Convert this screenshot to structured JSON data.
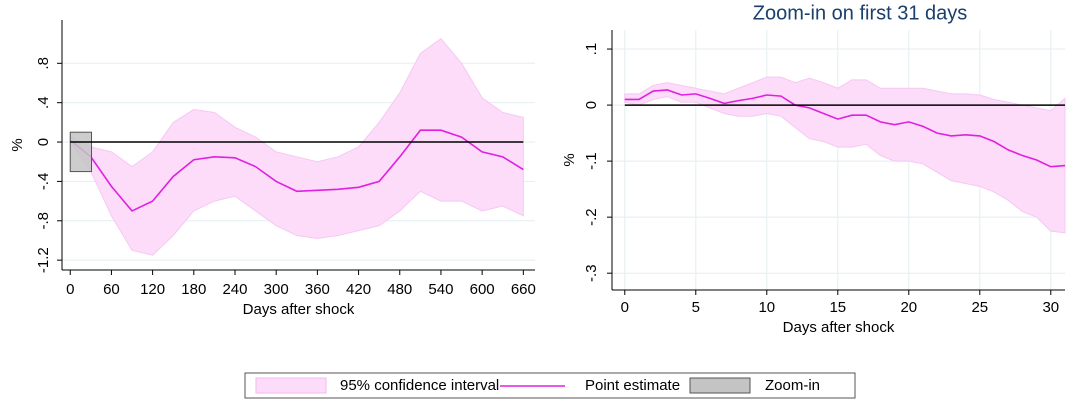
{
  "chart_data": [
    {
      "type": "line",
      "x_label": "Days after shock",
      "y_label": "%",
      "x": [
        0,
        30,
        60,
        90,
        120,
        150,
        180,
        210,
        240,
        270,
        300,
        330,
        360,
        390,
        420,
        450,
        480,
        510,
        540,
        570,
        600,
        630,
        660
      ],
      "series": [
        {
          "name": "95% confidence interval",
          "color": "#fcdcf9",
          "upper": [
            0.05,
            -0.05,
            -0.1,
            -0.25,
            -0.1,
            0.2,
            0.33,
            0.3,
            0.15,
            0.05,
            -0.1,
            -0.15,
            -0.2,
            -0.15,
            -0.05,
            0.2,
            0.5,
            0.9,
            1.05,
            0.8,
            0.45,
            0.3,
            0.25
          ],
          "lower": [
            0,
            -0.3,
            -0.75,
            -1.1,
            -1.15,
            -0.95,
            -0.7,
            -0.6,
            -0.55,
            -0.7,
            -0.85,
            -0.95,
            -0.98,
            -0.95,
            -0.9,
            -0.85,
            -0.7,
            -0.5,
            -0.6,
            -0.6,
            -0.7,
            -0.65,
            -0.75
          ]
        },
        {
          "name": "Point estimate",
          "color": "#e020e0",
          "values": [
            0.02,
            -0.15,
            -0.45,
            -0.7,
            -0.6,
            -0.35,
            -0.18,
            -0.15,
            -0.16,
            -0.25,
            -0.4,
            -0.5,
            -0.49,
            -0.48,
            -0.46,
            -0.4,
            -0.15,
            0.12,
            0.12,
            0.05,
            -0.1,
            -0.15,
            -0.28
          ]
        }
      ],
      "zoom": {
        "name": "Zoom-in",
        "color": "#c4c4c4",
        "x": [
          0,
          31
        ],
        "y": [
          -0.3,
          0.1
        ]
      },
      "hline": 0,
      "xlim": [
        -12,
        677
      ],
      "ylim": [
        -1.3,
        1.24
      ],
      "xticks": [
        0,
        60,
        120,
        180,
        240,
        300,
        360,
        420,
        480,
        540,
        600,
        660
      ],
      "yticks": [
        {
          "value": 0.8,
          "label": ".8"
        },
        {
          "value": 0.4,
          "label": ".4"
        },
        0,
        {
          "value": -0.4,
          "label": "-.4"
        },
        {
          "value": -0.8,
          "label": "-.8"
        },
        {
          "value": -1.2,
          "label": "-1.2"
        }
      ],
      "grid": true,
      "xgrid": false
    },
    {
      "type": "line",
      "title": "Zoom-in on first 31 days",
      "x_label": "Days after shock",
      "y_label": "%",
      "x": [
        0,
        1,
        2,
        3,
        4,
        5,
        6,
        7,
        8,
        9,
        10,
        11,
        12,
        13,
        14,
        15,
        16,
        17,
        18,
        19,
        20,
        21,
        22,
        23,
        24,
        25,
        26,
        27,
        28,
        29,
        30,
        31
      ],
      "series": [
        {
          "color": "#fcdcf9",
          "upper": [
            0.02,
            0.02,
            0.035,
            0.04,
            0.035,
            0.03,
            0.025,
            0.02,
            0.03,
            0.04,
            0.05,
            0.05,
            0.04,
            0.048,
            0.04,
            0.03,
            0.045,
            0.045,
            0.03,
            0.03,
            0.03,
            0.03,
            0.025,
            0.02,
            0.02,
            0.018,
            0.01,
            0.005,
            0,
            -0.005,
            -0.01,
            0.012
          ],
          "lower": [
            0.005,
            0,
            0.01,
            0.015,
            0.005,
            0.005,
            -0.005,
            -0.015,
            -0.02,
            -0.02,
            -0.015,
            -0.02,
            -0.04,
            -0.06,
            -0.065,
            -0.075,
            -0.075,
            -0.07,
            -0.09,
            -0.1,
            -0.1,
            -0.105,
            -0.12,
            -0.135,
            -0.14,
            -0.145,
            -0.155,
            -0.17,
            -0.19,
            -0.2,
            -0.225,
            -0.228
          ]
        },
        {
          "color": "#e020e0",
          "values": [
            0.01,
            0.01,
            0.025,
            0.027,
            0.018,
            0.02,
            0.012,
            0.003,
            0.008,
            0.012,
            0.018,
            0.016,
            0,
            -0.005,
            -0.015,
            -0.025,
            -0.018,
            -0.018,
            -0.03,
            -0.035,
            -0.03,
            -0.038,
            -0.05,
            -0.055,
            -0.053,
            -0.055,
            -0.065,
            -0.08,
            -0.09,
            -0.098,
            -0.11,
            -0.108
          ]
        }
      ],
      "hline": 0,
      "xlim": [
        -0.9,
        31
      ],
      "ylim": [
        -0.33,
        0.134
      ],
      "xticks": [
        0,
        5,
        10,
        15,
        20,
        25,
        30
      ],
      "yticks": [
        {
          "value": 0.1,
          "label": ".1"
        },
        0,
        {
          "value": -0.1,
          "label": "-.1"
        },
        {
          "value": -0.2,
          "label": "-.2"
        },
        {
          "value": -0.3,
          "label": "-.3"
        }
      ],
      "grid": true,
      "xgrid": true
    }
  ]
}
